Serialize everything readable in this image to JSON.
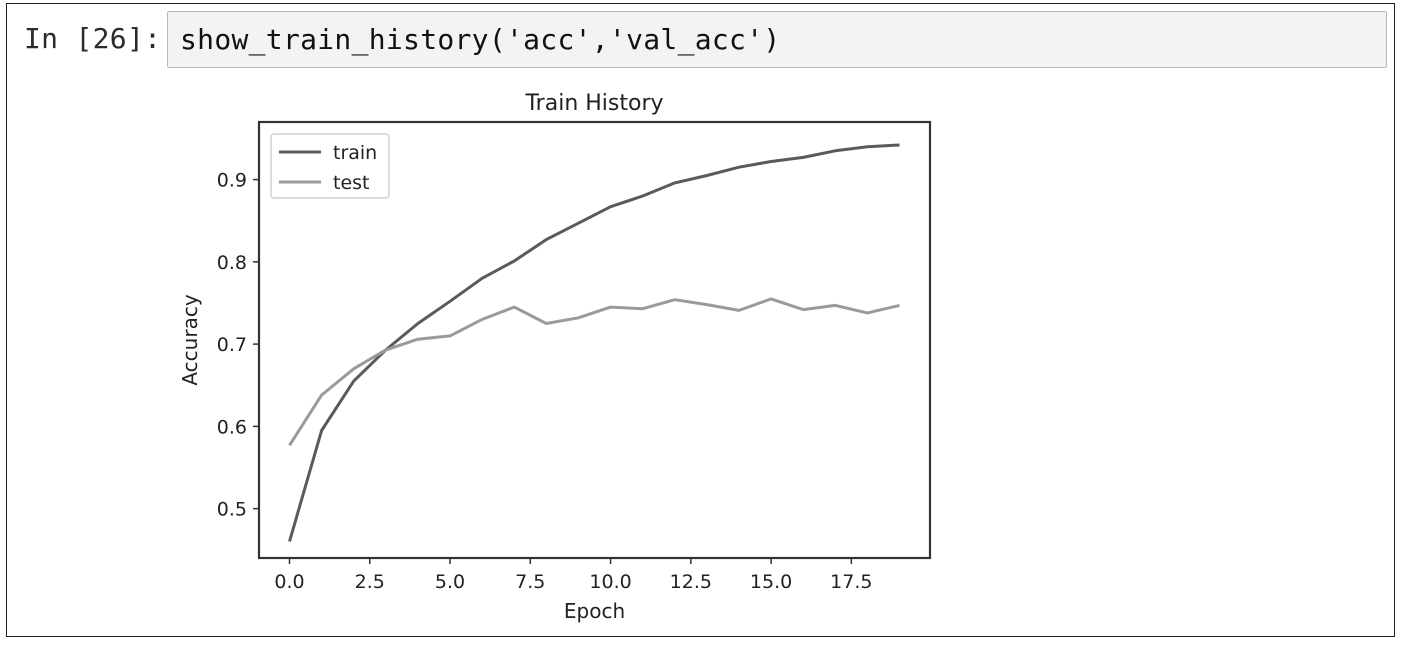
{
  "cell": {
    "prompt": "In [26]:",
    "code": "show_train_history('acc','val_acc')"
  },
  "chart_data": {
    "type": "line",
    "title": "Train History",
    "xlabel": "Epoch",
    "ylabel": "Accuracy",
    "xlim": [
      -0.95,
      19.95
    ],
    "ylim": [
      0.44,
      0.97
    ],
    "xticks": [
      0,
      2.5,
      5,
      7.5,
      10,
      12.5,
      15,
      17.5
    ],
    "xtick_labels": [
      "0.0",
      "2.5",
      "5.0",
      "7.5",
      "10.0",
      "12.5",
      "15.0",
      "17.5"
    ],
    "yticks": [
      0.5,
      0.6,
      0.7,
      0.8,
      0.9
    ],
    "ytick_labels": [
      "0.5",
      "0.6",
      "0.7",
      "0.8",
      "0.9"
    ],
    "legend_position": "upper-left",
    "grid": false,
    "x": [
      0,
      1,
      2,
      3,
      4,
      5,
      6,
      7,
      8,
      9,
      10,
      11,
      12,
      13,
      14,
      15,
      16,
      17,
      18,
      19
    ],
    "series": [
      {
        "name": "train",
        "color": "#5a5a5a",
        "values": [
          0.46,
          0.595,
          0.655,
          0.693,
          0.725,
          0.752,
          0.78,
          0.801,
          0.827,
          0.847,
          0.867,
          0.88,
          0.896,
          0.905,
          0.915,
          0.922,
          0.927,
          0.935,
          0.94,
          0.942
        ]
      },
      {
        "name": "test",
        "color": "#9a9a9a",
        "values": [
          0.577,
          0.638,
          0.67,
          0.693,
          0.706,
          0.71,
          0.73,
          0.745,
          0.725,
          0.732,
          0.745,
          0.743,
          0.754,
          0.748,
          0.741,
          0.755,
          0.742,
          0.747,
          0.738,
          0.747
        ]
      }
    ]
  }
}
